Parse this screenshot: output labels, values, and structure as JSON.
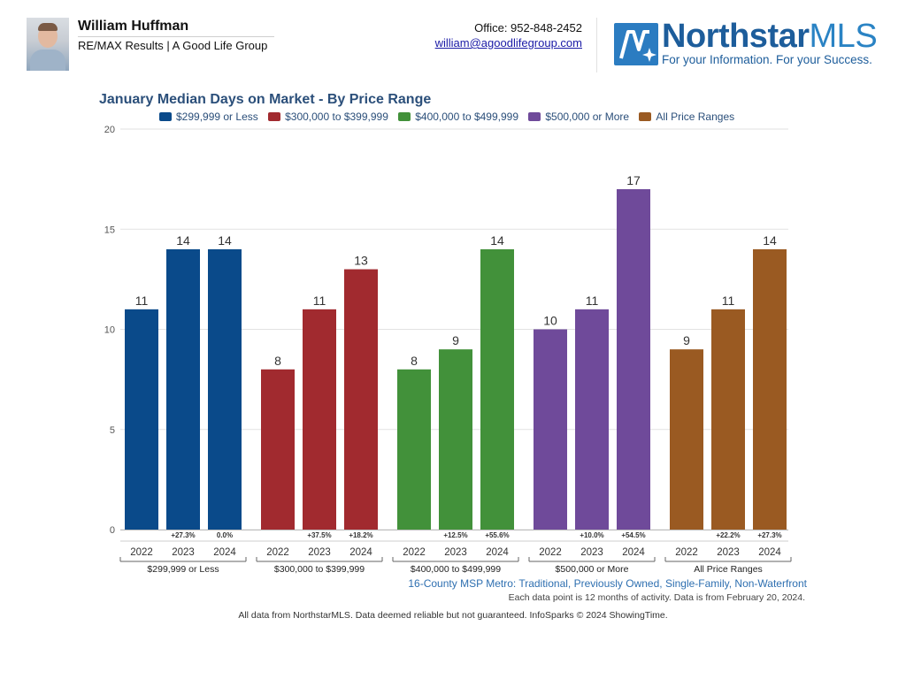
{
  "agent": {
    "name": "William Huffman",
    "company": "RE/MAX Results | A Good Life Group",
    "office": "Office: 952-848-2452",
    "email": "william@agoodlifegroup.com"
  },
  "brand": {
    "name_main": "Northstar",
    "name_suffix": "MLS",
    "tagline": "For your Information. For your Success.",
    "colors": {
      "primary": "#1d5d9b",
      "accent": "#2a83c4",
      "mark": "#2b7cc1"
    }
  },
  "chart_data": {
    "type": "bar",
    "title": "January Median Days on Market - By Price Range",
    "xlabel": "",
    "ylabel": "",
    "ylim": [
      0,
      20
    ],
    "yticks": [
      0,
      5,
      10,
      15,
      20
    ],
    "grid": true,
    "legend_position": "top",
    "years": [
      "2022",
      "2023",
      "2024"
    ],
    "series": [
      {
        "name": "$299,999 or Less",
        "color": "#0a4a8a",
        "values": [
          11,
          14,
          14
        ],
        "changes": [
          "",
          "+27.3%",
          "0.0%"
        ]
      },
      {
        "name": "$300,000 to $399,999",
        "color": "#a12a2f",
        "values": [
          8,
          11,
          13
        ],
        "changes": [
          "",
          "+37.5%",
          "+18.2%"
        ]
      },
      {
        "name": "$400,000 to $499,999",
        "color": "#42913a",
        "values": [
          8,
          9,
          14
        ],
        "changes": [
          "",
          "+12.5%",
          "+55.6%"
        ]
      },
      {
        "name": "$500,000 or More",
        "color": "#6f4a9a",
        "values": [
          10,
          11,
          17
        ],
        "changes": [
          "",
          "+10.0%",
          "+54.5%"
        ]
      },
      {
        "name": "All Price Ranges",
        "color": "#9a5a22",
        "values": [
          9,
          11,
          14
        ],
        "changes": [
          "",
          "+22.2%",
          "+27.3%"
        ]
      }
    ]
  },
  "footer": {
    "area": "16-County MSP Metro: Traditional, Previously Owned, Single-Family, Non-Waterfront",
    "data_note": "Each data point is 12 months of activity. Data is from February 20, 2024.",
    "disclaimer": "All data from NorthstarMLS. Data deemed reliable but not guaranteed. InfoSparks © 2024 ShowingTime."
  }
}
